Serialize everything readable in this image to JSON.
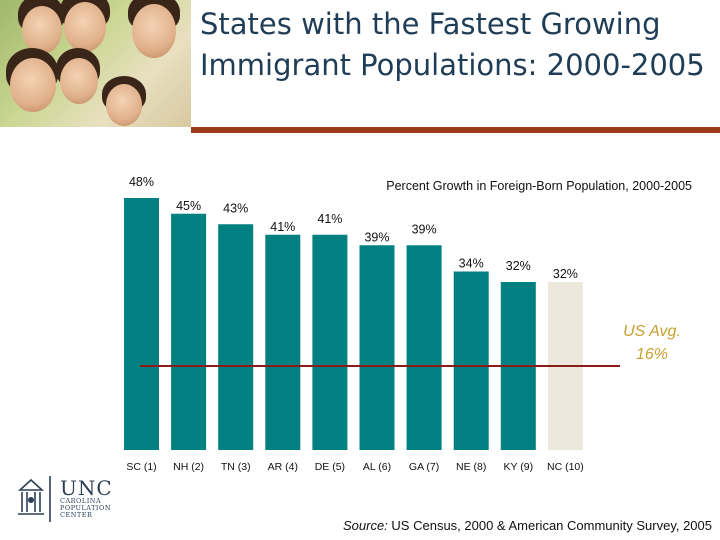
{
  "slide": {
    "title": "States with the Fastest Growing Immigrant Populations: 2000-2005",
    "source_label": "Source:",
    "source_text": "US Census, 2000 & American Community Survey, 2005"
  },
  "logo": {
    "name": "UNC",
    "sub": [
      "CAROLINA",
      "POPULATION",
      "CENTER"
    ]
  },
  "colors": {
    "bar": "#008080",
    "bar_highlight": "#ede8dc",
    "reference_line": "#8b1a1a",
    "reference_text": "#c8a032",
    "title_rule": "#9c3b18"
  },
  "chart_data": {
    "type": "bar",
    "title": "Percent Growth in Foreign-Born Population, 2000-2005",
    "categories": [
      "SC (1)",
      "NH (2)",
      "TN (3)",
      "AR (4)",
      "DE (5)",
      "AL (6)",
      "GA (7)",
      "NE (8)",
      "KY (9)",
      "NC (10)"
    ],
    "values": [
      48,
      45,
      43,
      41,
      41,
      39,
      39,
      34,
      32,
      32
    ],
    "value_labels": [
      "48%",
      "45%",
      "43%",
      "41%",
      "41%",
      "39%",
      "39%",
      "34%",
      "32%",
      "32%"
    ],
    "highlight_index": 9,
    "ylim": [
      0,
      50
    ],
    "reference_line": {
      "value": 16,
      "label_lines": [
        "US Avg.",
        "16%"
      ]
    },
    "grid": false,
    "legend": "none"
  }
}
